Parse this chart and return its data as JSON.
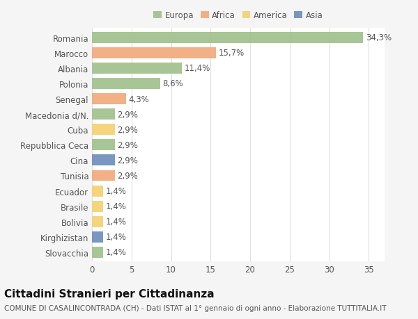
{
  "categories": [
    "Romania",
    "Marocco",
    "Albania",
    "Polonia",
    "Senegal",
    "Macedonia d/N.",
    "Cuba",
    "Repubblica Ceca",
    "Cina",
    "Tunisia",
    "Ecuador",
    "Brasile",
    "Bolivia",
    "Kirghizistan",
    "Slovacchia"
  ],
  "values": [
    34.3,
    15.7,
    11.4,
    8.6,
    4.3,
    2.9,
    2.9,
    2.9,
    2.9,
    2.9,
    1.4,
    1.4,
    1.4,
    1.4,
    1.4
  ],
  "labels": [
    "34,3%",
    "15,7%",
    "11,4%",
    "8,6%",
    "4,3%",
    "2,9%",
    "2,9%",
    "2,9%",
    "2,9%",
    "2,9%",
    "1,4%",
    "1,4%",
    "1,4%",
    "1,4%",
    "1,4%"
  ],
  "colors": [
    "#9fc08a",
    "#f0a878",
    "#9fc08a",
    "#9fc08a",
    "#f0a878",
    "#9fc08a",
    "#f5d070",
    "#9fc08a",
    "#6b8cba",
    "#f0a878",
    "#f5d070",
    "#f5d070",
    "#f5d070",
    "#6b8cba",
    "#9fc08a"
  ],
  "legend_labels": [
    "Europa",
    "Africa",
    "America",
    "Asia"
  ],
  "legend_colors": [
    "#9fc08a",
    "#f0a878",
    "#f5d070",
    "#6b8cba"
  ],
  "title": "Cittadini Stranieri per Cittadinanza",
  "subtitle": "COMUNE DI CASALINCONTRADA (CH) - Dati ISTAT al 1° gennaio di ogni anno - Elaborazione TUTTITALIA.IT",
  "xlim": [
    0,
    37
  ],
  "xticks": [
    0,
    5,
    10,
    15,
    20,
    25,
    30,
    35
  ],
  "background_color": "#f5f5f5",
  "plot_bg_color": "#ffffff",
  "grid_color": "#e0e0e0",
  "bar_height": 0.72,
  "label_fontsize": 8.5,
  "tick_fontsize": 8.5,
  "title_fontsize": 11,
  "subtitle_fontsize": 7.5
}
